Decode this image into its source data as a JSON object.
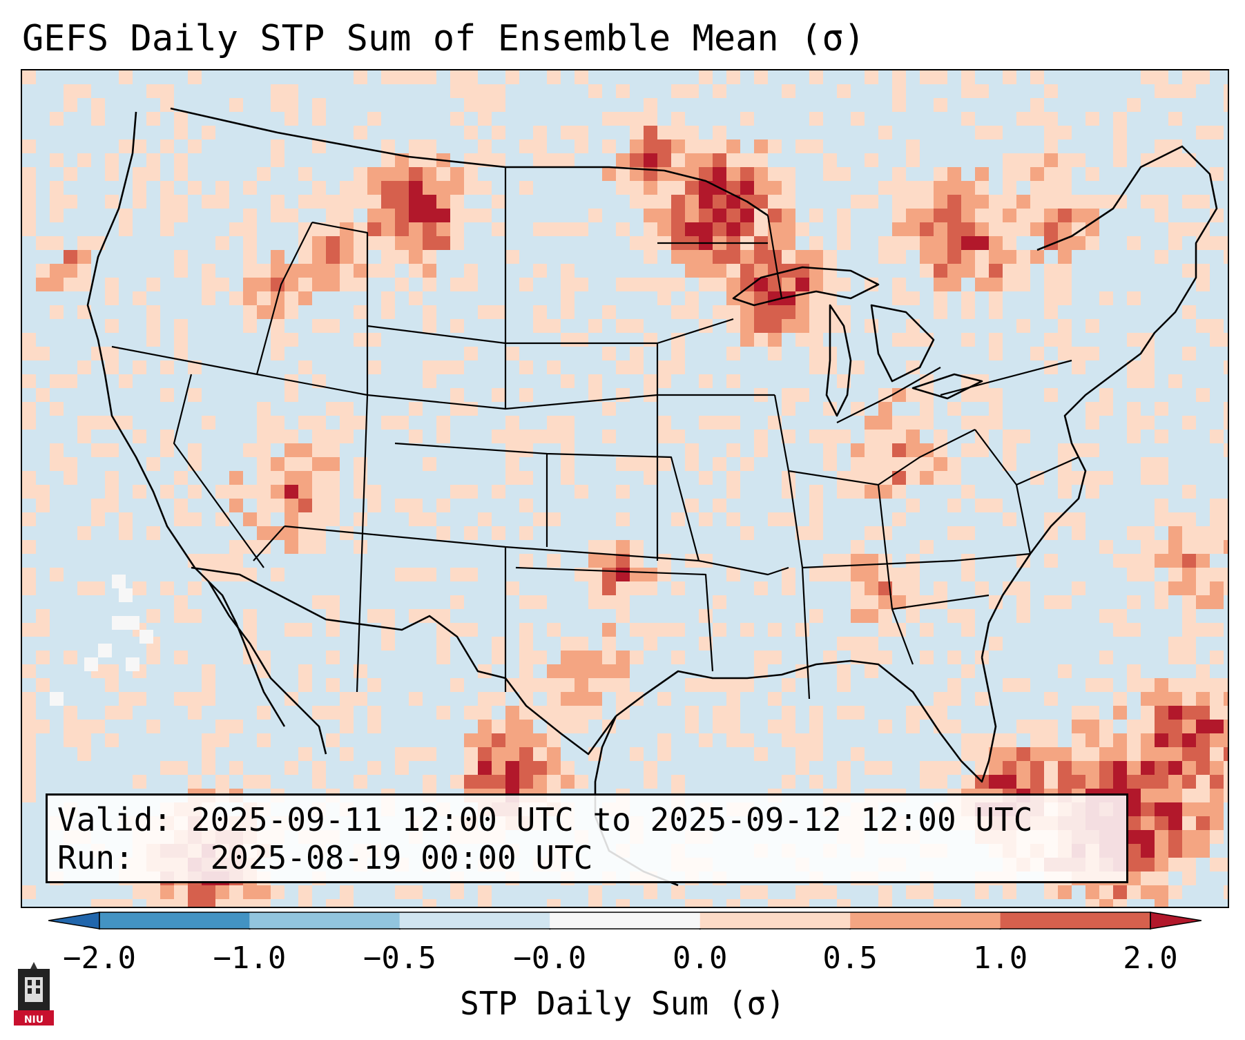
{
  "title": "GEFS Daily STP Sum of Ensemble Mean (σ)",
  "info": {
    "valid_label": "Valid:",
    "valid_value": "2025-09-11 12:00 UTC to 2025-09-12 12:00 UTC",
    "run_label": "Run:",
    "run_value": "2025-08-19 00:00 UTC"
  },
  "colorbar": {
    "label": "STP Daily Sum (σ)",
    "ticks": [
      "−2.0",
      "−1.0",
      "−0.5",
      "−0.0",
      "0.0",
      "0.5",
      "1.0",
      "2.0"
    ],
    "bins": [
      {
        "range": "< -2.0",
        "color": "#2166ac"
      },
      {
        "range": "-2.0 to -1.0",
        "color": "#4393c3"
      },
      {
        "range": "-1.0 to -0.5",
        "color": "#92c5de"
      },
      {
        "range": "-0.5 to -0.0",
        "color": "#d1e5f0"
      },
      {
        "range": "-0.0 to 0.0",
        "color": "#f7f7f7"
      },
      {
        "range": "0.0 to 0.5",
        "color": "#fddbc7"
      },
      {
        "range": "0.5 to 1.0",
        "color": "#f4a582"
      },
      {
        "range": "1.0 to 2.0",
        "color": "#d6604d"
      },
      {
        "range": "> 2.0",
        "color": "#b2182b"
      }
    ]
  },
  "logo": {
    "text": "NIU",
    "color": "#c8102e"
  },
  "map": {
    "background_color": "#d1e5f0",
    "border_color": "#000000",
    "hotspot_regions": [
      "Northern Minnesota / Lake Superior",
      "Montana / Alberta border",
      "Upper Michigan",
      "Caribbean / Bahamas",
      "Central Oklahoma",
      "Southwest Texas / Mexico",
      "Central Florida"
    ]
  }
}
